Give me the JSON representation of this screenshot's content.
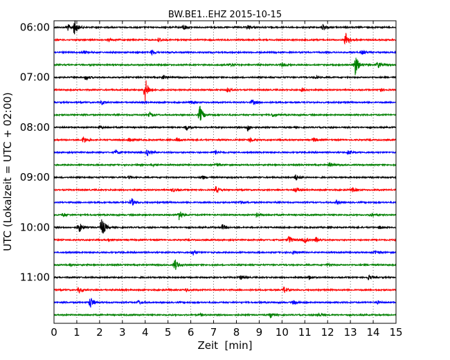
{
  "chart_data": {
    "type": "line",
    "title": "BW.BE1..EHZ 2015-10-15",
    "xlabel": "Zeit  [min]",
    "ylabel": "UTC (Lokalzeit = UTC + 02:00)",
    "xlim": [
      0,
      15
    ],
    "x_ticks": [
      "0",
      "1",
      "2",
      "3",
      "4",
      "5",
      "6",
      "7",
      "8",
      "9",
      "10",
      "11",
      "12",
      "13",
      "14",
      "15"
    ],
    "y_tick_labels": [
      "06:00",
      "07:00",
      "08:00",
      "09:00",
      "10:00",
      "11:00"
    ],
    "y_tick_trace_index": [
      0,
      4,
      8,
      12,
      16,
      20
    ],
    "grid": true,
    "trace_minutes": 15,
    "trace_colors": [
      "#000000",
      "#ff0000",
      "#0000ff",
      "#008000"
    ],
    "traces": [
      {
        "start": "06:00",
        "events": [
          {
            "t": 0.9,
            "amp": 11
          },
          {
            "t": 0.6,
            "amp": 5
          },
          {
            "t": 5.7,
            "amp": 4
          },
          {
            "t": 11.8,
            "amp": 5
          },
          {
            "t": 8.5,
            "amp": 3
          }
        ]
      },
      {
        "start": "06:15",
        "events": [
          {
            "t": 12.8,
            "amp": 11
          },
          {
            "t": 4.6,
            "amp": 3
          },
          {
            "t": 2.4,
            "amp": 2
          }
        ]
      },
      {
        "start": "06:30",
        "events": [
          {
            "t": 4.3,
            "amp": 4
          },
          {
            "t": 13.5,
            "amp": 3
          },
          {
            "t": 1.3,
            "amp": 2
          }
        ]
      },
      {
        "start": "06:45",
        "events": [
          {
            "t": 13.2,
            "amp": 16
          },
          {
            "t": 14.2,
            "amp": 5
          },
          {
            "t": 10.0,
            "amp": 3
          },
          {
            "t": 7.7,
            "amp": 2
          }
        ]
      },
      {
        "start": "07:00",
        "events": [
          {
            "t": 1.4,
            "amp": 4
          },
          {
            "t": 4.8,
            "amp": 3
          },
          {
            "t": 11.5,
            "amp": 2
          }
        ]
      },
      {
        "start": "07:15",
        "events": [
          {
            "t": 4.0,
            "amp": 18
          },
          {
            "t": 7.6,
            "amp": 3
          },
          {
            "t": 10.9,
            "amp": 3
          },
          {
            "t": 14.3,
            "amp": 3
          }
        ]
      },
      {
        "start": "07:30",
        "events": [
          {
            "t": 8.7,
            "amp": 4
          },
          {
            "t": 2.1,
            "amp": 3
          },
          {
            "t": 6.0,
            "amp": 2
          }
        ]
      },
      {
        "start": "07:45",
        "events": [
          {
            "t": 6.4,
            "amp": 13
          },
          {
            "t": 4.2,
            "amp": 3
          },
          {
            "t": 9.6,
            "amp": 3
          }
        ]
      },
      {
        "start": "08:00",
        "events": [
          {
            "t": 8.5,
            "amp": 5
          },
          {
            "t": 5.8,
            "amp": 4
          },
          {
            "t": 2.0,
            "amp": 2
          }
        ]
      },
      {
        "start": "08:15",
        "events": [
          {
            "t": 1.3,
            "amp": 5
          },
          {
            "t": 3.3,
            "amp": 4
          },
          {
            "t": 5.4,
            "amp": 3
          },
          {
            "t": 8.6,
            "amp": 3
          },
          {
            "t": 11.4,
            "amp": 3
          }
        ]
      },
      {
        "start": "08:30",
        "events": [
          {
            "t": 4.1,
            "amp": 5
          },
          {
            "t": 2.7,
            "amp": 3
          },
          {
            "t": 7.1,
            "amp": 3
          },
          {
            "t": 12.9,
            "amp": 3
          }
        ]
      },
      {
        "start": "08:45",
        "events": [
          {
            "t": 7.1,
            "amp": 3
          },
          {
            "t": 12.1,
            "amp": 3
          },
          {
            "t": 4.3,
            "amp": 2
          }
        ]
      },
      {
        "start": "09:00",
        "events": [
          {
            "t": 10.6,
            "amp": 4
          },
          {
            "t": 6.5,
            "amp": 3
          },
          {
            "t": 3.3,
            "amp": 2
          }
        ]
      },
      {
        "start": "09:15",
        "events": [
          {
            "t": 7.1,
            "amp": 5
          },
          {
            "t": 10.6,
            "amp": 4
          },
          {
            "t": 5.2,
            "amp": 3
          },
          {
            "t": 13.1,
            "amp": 3
          }
        ]
      },
      {
        "start": "09:30",
        "events": [
          {
            "t": 3.4,
            "amp": 6
          },
          {
            "t": 8.2,
            "amp": 3
          },
          {
            "t": 12.4,
            "amp": 3
          }
        ]
      },
      {
        "start": "09:45",
        "events": [
          {
            "t": 5.5,
            "amp": 8
          },
          {
            "t": 0.4,
            "amp": 3
          },
          {
            "t": 8.9,
            "amp": 3
          },
          {
            "t": 13.9,
            "amp": 3
          }
        ]
      },
      {
        "start": "10:00",
        "events": [
          {
            "t": 2.1,
            "amp": 15
          },
          {
            "t": 1.1,
            "amp": 8
          },
          {
            "t": 7.4,
            "amp": 4
          },
          {
            "t": 14.3,
            "amp": 2
          }
        ]
      },
      {
        "start": "10:15",
        "events": [
          {
            "t": 10.3,
            "amp": 6
          },
          {
            "t": 11.0,
            "amp": 4
          },
          {
            "t": 11.5,
            "amp": 4
          },
          {
            "t": 2.4,
            "amp": 2
          }
        ]
      },
      {
        "start": "10:30",
        "events": [
          {
            "t": 6.1,
            "amp": 4
          },
          {
            "t": 10.5,
            "amp": 3
          },
          {
            "t": 14.1,
            "amp": 3
          }
        ]
      },
      {
        "start": "10:45",
        "events": [
          {
            "t": 5.3,
            "amp": 9
          },
          {
            "t": 0.7,
            "amp": 2
          },
          {
            "t": 12.0,
            "amp": 2
          }
        ]
      },
      {
        "start": "11:00",
        "events": [
          {
            "t": 8.2,
            "amp": 3
          },
          {
            "t": 11.2,
            "amp": 3
          },
          {
            "t": 13.8,
            "amp": 3
          }
        ]
      },
      {
        "start": "11:15",
        "events": [
          {
            "t": 1.1,
            "amp": 4
          },
          {
            "t": 10.1,
            "amp": 5
          },
          {
            "t": 5.8,
            "amp": 2
          }
        ]
      },
      {
        "start": "11:30",
        "events": [
          {
            "t": 1.6,
            "amp": 9
          },
          {
            "t": 3.7,
            "amp": 3
          },
          {
            "t": 10.5,
            "amp": 3
          },
          {
            "t": 14.2,
            "amp": 2
          }
        ]
      },
      {
        "start": "11:45",
        "events": [
          {
            "t": 9.5,
            "amp": 4
          },
          {
            "t": 11.6,
            "amp": 3
          },
          {
            "t": 6.4,
            "amp": 2
          }
        ]
      }
    ]
  }
}
